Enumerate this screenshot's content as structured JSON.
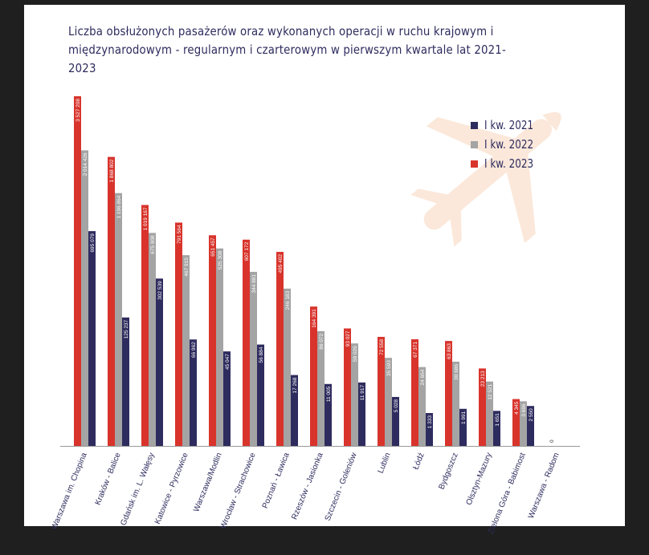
{
  "chart_data": {
    "type": "bar",
    "title": "Liczba obsłużonych pasażerów oraz wykonanych operacji w ruchu krajowym i międzynarodowym - regularnym i czarterowym w pierwszym kwartale lat 2021-2023",
    "xlabel": "",
    "ylabel": "",
    "grid": false,
    "legend_position": "top-right",
    "categories": [
      "Warszawa im. Chopina",
      "Kraków - Balice",
      "Gdańsk im. L. Wałęsy",
      "Katowice - Pyrzowice",
      "Warszawa/Modlin",
      "Wrocław - Strachowice",
      "Poznań - Ławica",
      "Rzeszów - Jasionka",
      "Szczecin - Goleniów",
      "Lublin",
      "Łódź",
      "Bydgoszcz",
      "Olsztyn-Mazury",
      "Zielona Góra - Babimost",
      "Warszawa - Radom"
    ],
    "series": [
      {
        "name": "I kw. 2023",
        "color": "#d8342c",
        "values": [
          3527208,
          1868802,
          1019167,
          791564,
          651457,
          607172,
          495402,
          164391,
          93027,
          72558,
          67371,
          63863,
          23213,
          4345,
          0
        ],
        "labels": [
          "3 527 208",
          "1 868 802",
          "1 019 167",
          "791 564",
          "651 457",
          "607 172",
          "495 402",
          "164 391",
          "93 027",
          "72 558",
          "67 371",
          "63 863",
          "23 213",
          "4 345",
          ""
        ]
      },
      {
        "name": "I kw. 2022",
        "color": "#a4a4a4",
        "values": [
          2014426,
          1196864,
          675908,
          467915,
          525308,
          344881,
          246183,
          86072,
          59026,
          35593,
          24654,
          30686,
          12521,
          3696,
          0
        ],
        "labels": [
          "2 014 426",
          "1 196 864",
          "675 908",
          "467 915",
          "525 308",
          "344 881",
          "246 183",
          "86 072",
          "59 026",
          "35 593",
          "24 654",
          "30 686",
          "12 521",
          "3 696",
          ""
        ]
      },
      {
        "name": "I kw. 2021",
        "color": "#2e2c5e",
        "values": [
          695079,
          125237,
          302539,
          66962,
          45047,
          56884,
          17268,
          11005,
          11917,
          5028,
          1333,
          1991,
          1651,
          2550,
          0
        ],
        "labels": [
          "695 079",
          "125 237",
          "302 539",
          "66 962",
          "45 047",
          "56 884",
          "17 268",
          "11 005",
          "11 917",
          "5 028",
          "1 333",
          "1 991",
          "1 651",
          "2 550",
          "0"
        ]
      }
    ]
  },
  "legend": [
    {
      "label": "I kw. 2021",
      "color": "#2e2c5e"
    },
    {
      "label": "I kw. 2022",
      "color": "#a4a4a4"
    },
    {
      "label": "I kw. 2023",
      "color": "#d8342c"
    }
  ]
}
